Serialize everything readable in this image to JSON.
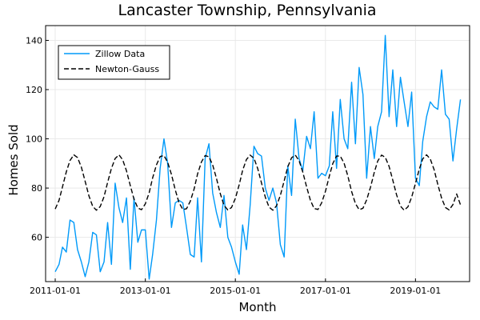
{
  "chart_data": {
    "type": "line",
    "title": "Lancaster Township, Pennsylvania",
    "xlabel": "Month",
    "ylabel": "Homes Sold",
    "xlim": [
      "2010-10-15",
      "2020-03-15"
    ],
    "ylim": [
      42,
      146
    ],
    "x_ticks": [
      "2011-01-01",
      "2013-01-01",
      "2015-01-01",
      "2017-01-01",
      "2019-01-01"
    ],
    "y_ticks": [
      60,
      80,
      100,
      120,
      140
    ],
    "grid": true,
    "legend_position": "top-left",
    "x_start": "2011-01",
    "series": [
      {
        "name": "Zillow Data",
        "style": "solid",
        "color": "#009af9",
        "values": [
          46,
          49,
          56,
          54,
          67,
          66,
          55,
          50,
          44,
          50,
          62,
          61,
          46,
          50,
          66,
          49,
          82,
          72,
          66,
          76,
          47,
          76,
          58,
          63,
          63,
          43,
          53,
          67,
          88,
          100,
          90,
          64,
          74,
          75,
          74,
          64,
          53,
          52,
          76,
          50,
          92,
          98,
          78,
          70,
          64,
          77,
          60,
          56,
          50,
          45,
          65,
          55,
          73,
          97,
          94,
          93,
          80,
          75,
          80,
          74,
          57,
          52,
          89,
          77,
          108,
          92,
          87,
          101,
          96,
          111,
          84,
          86,
          85,
          89,
          111,
          88,
          116,
          100,
          96,
          123,
          98,
          129,
          118,
          84,
          105,
          92,
          105,
          111,
          142,
          109,
          128,
          105,
          125,
          115,
          105,
          119,
          84,
          81,
          99,
          109,
          115,
          113,
          112,
          128,
          110,
          108,
          91,
          104,
          116
        ]
      },
      {
        "name": "Newton-Gauss",
        "style": "dashed",
        "color": "#000000",
        "values": [
          71.5,
          75.0,
          80.5,
          86.6,
          91.2,
          93.5,
          92.4,
          88.5,
          82.7,
          76.9,
          72.6,
          71.0,
          72.5,
          76.5,
          82.3,
          88.0,
          92.0,
          93.5,
          91.5,
          87.0,
          81.0,
          75.5,
          71.9,
          71.2,
          73.6,
          78.1,
          84.1,
          89.4,
          92.8,
          93.2,
          90.5,
          85.5,
          79.2,
          74.1,
          71.3,
          71.6,
          74.7,
          79.7,
          85.8,
          90.6,
          93.2,
          92.7,
          89.4,
          83.9,
          77.7,
          73.0,
          71.1,
          72.1,
          75.8,
          81.3,
          87.2,
          91.6,
          93.4,
          92.1,
          88.0,
          82.1,
          76.3,
          72.3,
          71.0,
          72.8,
          77.0,
          82.9,
          88.6,
          92.3,
          93.4,
          91.1,
          86.5,
          80.5,
          75.0,
          71.7,
          71.3,
          74.0,
          78.7,
          84.8,
          89.9,
          93.0,
          93.0,
          90.1,
          85.0,
          78.6,
          73.7,
          71.2,
          71.8,
          75.2,
          80.3,
          86.4,
          91.0,
          93.4,
          92.5,
          88.8,
          83.2,
          77.2,
          72.7,
          71.0,
          72.4,
          76.3,
          81.9,
          87.7,
          91.9,
          93.5,
          91.8,
          87.5,
          81.5,
          75.9,
          72.1,
          71.1,
          73.3,
          77.6,
          73.2
        ]
      }
    ]
  }
}
